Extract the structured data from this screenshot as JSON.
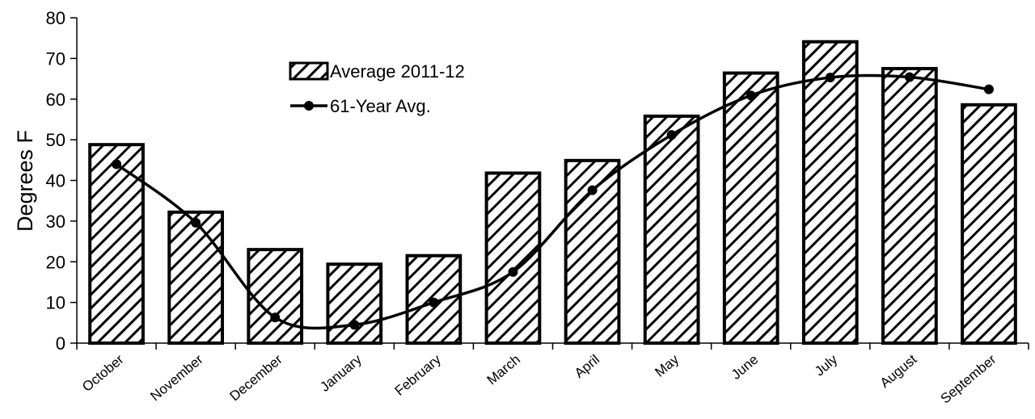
{
  "chart_data": {
    "type": "bar",
    "title": "",
    "xlabel": "",
    "ylabel": "Degrees F",
    "ylim": [
      0,
      80
    ],
    "yticks": [
      0,
      10,
      20,
      30,
      40,
      50,
      60,
      70,
      80
    ],
    "grid": false,
    "legend_position": "top-center",
    "categories": [
      "October",
      "November",
      "December",
      "January",
      "February",
      "March",
      "April",
      "May",
      "June",
      "July",
      "August",
      "September"
    ],
    "series": [
      {
        "name": "Average 2011-12",
        "type": "bar",
        "pattern": "diagonal-hatch",
        "values": [
          48.8,
          32.2,
          23.0,
          19.4,
          21.5,
          41.8,
          44.9,
          55.8,
          66.4,
          74.1,
          67.5,
          58.6
        ]
      },
      {
        "name": "61-Year Avg.",
        "type": "line",
        "marker": "circle",
        "values": [
          44.0,
          29.6,
          6.3,
          4.5,
          10.0,
          17.5,
          37.6,
          51.2,
          60.9,
          65.3,
          65.4,
          62.4
        ]
      }
    ],
    "colors": {
      "bar_fill": "#ffffff",
      "hatch": "#000000",
      "line": "#000000"
    }
  }
}
